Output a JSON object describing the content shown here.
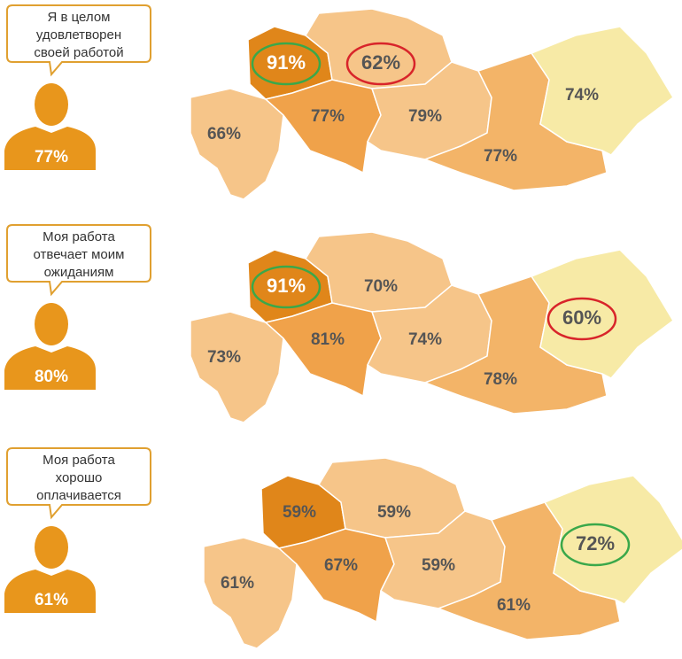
{
  "panels": [
    {
      "statement": [
        "Я в целом",
        "удовлетворен",
        "своей работой"
      ],
      "overall": "77%",
      "regions": [
        {
          "label": "66%",
          "color": "#f6c589"
        },
        {
          "label": "91%",
          "color": "#e0861a",
          "highlight": "green"
        },
        {
          "label": "62%",
          "color": "#f6c589",
          "highlight": "red"
        },
        {
          "label": "77%",
          "color": "#f0a24a"
        },
        {
          "label": "79%",
          "color": "#f6c589"
        },
        {
          "label": "77%",
          "color": "#f3b468"
        },
        {
          "label": "74%",
          "color": "#f7eaa6"
        }
      ]
    },
    {
      "statement": [
        "Моя работа",
        "отвечает моим",
        "ожиданиям"
      ],
      "overall": "80%",
      "regions": [
        {
          "label": "73%",
          "color": "#f6c589"
        },
        {
          "label": "91%",
          "color": "#e0861a",
          "highlight": "green"
        },
        {
          "label": "70%",
          "color": "#f6c589"
        },
        {
          "label": "81%",
          "color": "#f0a24a"
        },
        {
          "label": "74%",
          "color": "#f6c589"
        },
        {
          "label": "78%",
          "color": "#f3b468"
        },
        {
          "label": "60%",
          "color": "#f7eaa6",
          "highlight": "red"
        }
      ]
    },
    {
      "statement": [
        "Моя работа",
        "хорошо",
        "оплачивается"
      ],
      "overall": "61%",
      "regions": [
        {
          "label": "61%",
          "color": "#f6c589"
        },
        {
          "label": "59%",
          "color": "#e0861a"
        },
        {
          "label": "59%",
          "color": "#f6c589"
        },
        {
          "label": "67%",
          "color": "#f0a24a"
        },
        {
          "label": "59%",
          "color": "#f6c589"
        },
        {
          "label": "61%",
          "color": "#f3b468"
        },
        {
          "label": "72%",
          "color": "#f7eaa6",
          "highlight": "green"
        }
      ]
    }
  ]
}
